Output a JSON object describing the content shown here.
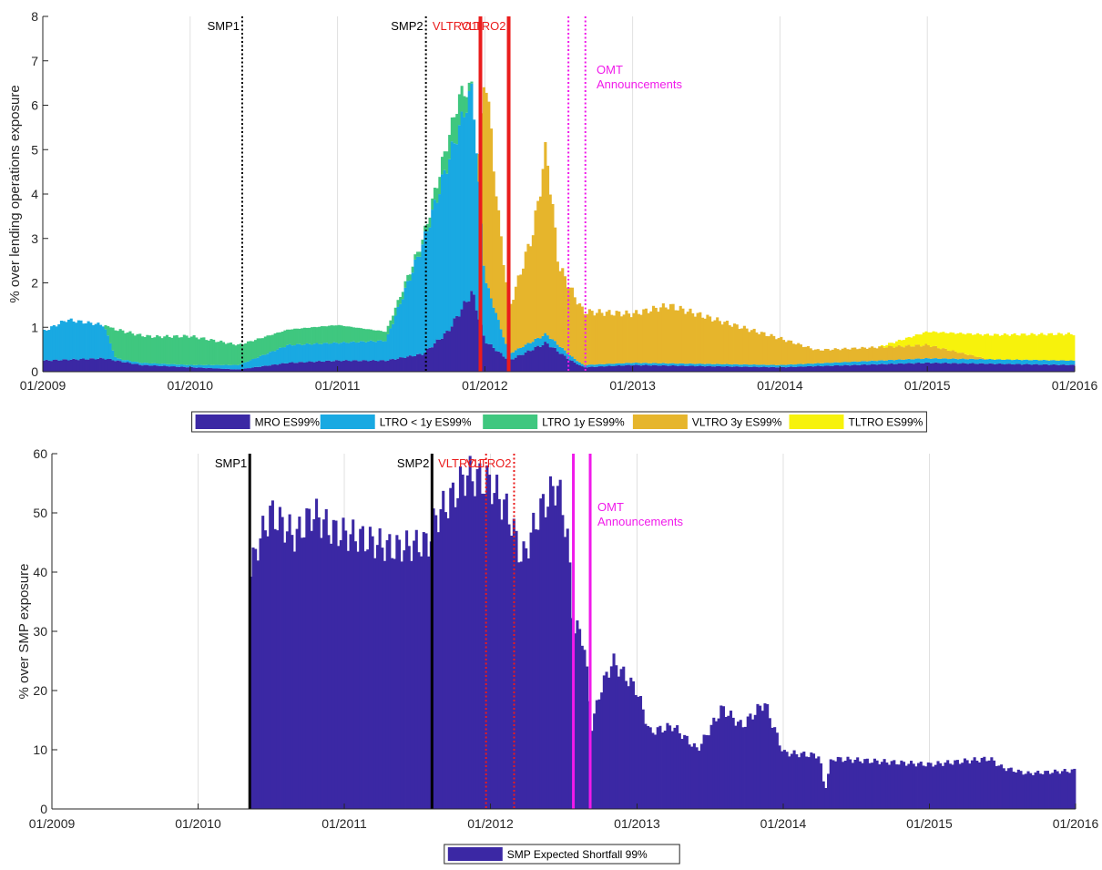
{
  "chart_data": [
    {
      "type": "area",
      "stacked": true,
      "x_axis": {
        "type": "date",
        "range": [
          "2009-01-01",
          "2016-01-01"
        ],
        "tick_values": [
          "2009-01-01",
          "2010-01-01",
          "2011-01-01",
          "2012-01-01",
          "2013-01-01",
          "2014-01-01",
          "2015-01-01",
          "2016-01-01"
        ],
        "tick_labels": [
          "01/2009",
          "01/2010",
          "01/2011",
          "01/2012",
          "01/2013",
          "01/2014",
          "01/2015",
          "01/2016"
        ]
      },
      "y_axis": {
        "label": "% over lending operations exposure",
        "range": [
          0,
          8
        ],
        "tick_values": [
          0,
          1,
          2,
          3,
          4,
          5,
          6,
          7,
          8
        ],
        "tick_labels": [
          "0",
          "1",
          "2",
          "3",
          "4",
          "5",
          "6",
          "7",
          "8"
        ]
      },
      "grid": "vertical",
      "legend_position": "bottom",
      "series": [
        {
          "name": "MRO ES99%",
          "color": "#3b28a4",
          "points": [
            [
              "2009-01-01",
              0.25
            ],
            [
              "2009-06-01",
              0.3
            ],
            [
              "2009-09-01",
              0.15
            ],
            [
              "2010-01-01",
              0.1
            ],
            [
              "2010-05-01",
              0.05
            ],
            [
              "2010-09-01",
              0.2
            ],
            [
              "2011-01-01",
              0.25
            ],
            [
              "2011-05-01",
              0.25
            ],
            [
              "2011-08-01",
              0.4
            ],
            [
              "2011-10-01",
              0.9
            ],
            [
              "2011-12-01",
              1.8
            ],
            [
              "2012-01-01",
              0.7
            ],
            [
              "2012-03-01",
              0.25
            ],
            [
              "2012-06-01",
              0.65
            ],
            [
              "2012-08-01",
              0.25
            ],
            [
              "2012-09-01",
              0.1
            ],
            [
              "2013-01-01",
              0.15
            ],
            [
              "2014-01-01",
              0.1
            ],
            [
              "2015-01-01",
              0.2
            ],
            [
              "2016-01-01",
              0.15
            ]
          ]
        },
        {
          "name": "LTRO < 1y ES99%",
          "color": "#19a9e2",
          "points": [
            [
              "2009-01-01",
              0.65
            ],
            [
              "2009-03-01",
              0.9
            ],
            [
              "2009-06-01",
              0.75
            ],
            [
              "2009-07-01",
              0.05
            ],
            [
              "2010-01-01",
              0.05
            ],
            [
              "2010-05-01",
              0.1
            ],
            [
              "2010-09-01",
              0.4
            ],
            [
              "2011-01-01",
              0.4
            ],
            [
              "2011-05-01",
              0.45
            ],
            [
              "2011-08-01",
              2.5
            ],
            [
              "2011-10-01",
              3.8
            ],
            [
              "2011-12-01",
              4.6
            ],
            [
              "2012-01-01",
              1.4
            ],
            [
              "2012-03-01",
              0.15
            ],
            [
              "2012-06-01",
              0.2
            ],
            [
              "2012-09-01",
              0.05
            ],
            [
              "2013-01-01",
              0.05
            ],
            [
              "2014-01-01",
              0.05
            ],
            [
              "2015-01-01",
              0.1
            ],
            [
              "2016-01-01",
              0.1
            ]
          ]
        },
        {
          "name": "LTRO 1y ES99%",
          "color": "#3fc77f",
          "points": [
            [
              "2009-01-01",
              0.0
            ],
            [
              "2009-06-01",
              0.0
            ],
            [
              "2009-07-01",
              0.65
            ],
            [
              "2009-10-01",
              0.6
            ],
            [
              "2010-01-01",
              0.65
            ],
            [
              "2010-05-01",
              0.45
            ],
            [
              "2010-09-01",
              0.35
            ],
            [
              "2011-01-01",
              0.4
            ],
            [
              "2011-05-01",
              0.2
            ],
            [
              "2011-08-01",
              0.1
            ],
            [
              "2011-11-01",
              0.7
            ],
            [
              "2011-12-01",
              0.0
            ],
            [
              "2016-01-01",
              0.0
            ]
          ]
        },
        {
          "name": "VLTRO 3y ES99%",
          "color": "#e6b52c",
          "points": [
            [
              "2009-01-01",
              0.0
            ],
            [
              "2011-12-15",
              0.0
            ],
            [
              "2012-01-01",
              4.8
            ],
            [
              "2012-02-01",
              2.5
            ],
            [
              "2012-03-01",
              1.0
            ],
            [
              "2012-05-01",
              2.5
            ],
            [
              "2012-06-01",
              4.2
            ],
            [
              "2012-07-01",
              1.8
            ],
            [
              "2012-09-01",
              1.2
            ],
            [
              "2013-01-01",
              1.1
            ],
            [
              "2013-04-01",
              1.3
            ],
            [
              "2013-09-01",
              0.9
            ],
            [
              "2014-01-01",
              0.6
            ],
            [
              "2014-04-01",
              0.3
            ],
            [
              "2015-01-01",
              0.3
            ],
            [
              "2015-06-01",
              0.0
            ],
            [
              "2016-01-01",
              0.0
            ]
          ]
        },
        {
          "name": "TLTRO ES99%",
          "color": "#f7f20c",
          "points": [
            [
              "2009-01-01",
              0.0
            ],
            [
              "2014-09-01",
              0.0
            ],
            [
              "2015-01-01",
              0.3
            ],
            [
              "2015-06-01",
              0.55
            ],
            [
              "2016-01-01",
              0.6
            ]
          ]
        }
      ],
      "annotations": [
        {
          "label": "SMP1",
          "date": "2010-05-10",
          "color": "#000000",
          "style": "dotted"
        },
        {
          "label": "SMP2",
          "date": "2011-08-08",
          "color": "#000000",
          "style": "dotted"
        },
        {
          "label": "VLTRO1",
          "date": "2011-12-21",
          "color": "#ea1c1c",
          "style": "solid"
        },
        {
          "label": "VLTRO2",
          "date": "2012-02-29",
          "color": "#ea1c1c",
          "style": "solid"
        },
        {
          "label": "",
          "date": "2012-07-26",
          "color": "#f01aea",
          "style": "dotted"
        },
        {
          "label": "",
          "date": "2012-09-06",
          "color": "#f01aea",
          "style": "dotted"
        },
        {
          "label": "OMT\nAnnouncements",
          "color": "#f01aea"
        }
      ]
    },
    {
      "type": "area",
      "x_axis": {
        "type": "date",
        "range": [
          "2009-01-01",
          "2016-01-01"
        ],
        "tick_values": [
          "2009-01-01",
          "2010-01-01",
          "2011-01-01",
          "2012-01-01",
          "2013-01-01",
          "2014-01-01",
          "2015-01-01",
          "2016-01-01"
        ],
        "tick_labels": [
          "01/2009",
          "01/2010",
          "01/2011",
          "01/2012",
          "01/2013",
          "01/2014",
          "01/2015",
          "01/2016"
        ]
      },
      "y_axis": {
        "label": "% over SMP exposure",
        "range": [
          0,
          60
        ],
        "tick_values": [
          0,
          10,
          20,
          30,
          40,
          50,
          60
        ],
        "tick_labels": [
          "0",
          "10",
          "20",
          "30",
          "40",
          "50",
          "60"
        ]
      },
      "grid": "vertical",
      "legend_position": "bottom",
      "series": [
        {
          "name": "SMP Expected Shortfall 99%",
          "color": "#3b28a4",
          "points": [
            [
              "2010-05-10",
              40
            ],
            [
              "2010-06-01",
              45
            ],
            [
              "2010-07-01",
              50
            ],
            [
              "2010-09-01",
              46
            ],
            [
              "2010-10-15",
              50
            ],
            [
              "2010-12-01",
              47
            ],
            [
              "2011-02-01",
              46
            ],
            [
              "2011-05-01",
              44
            ],
            [
              "2011-08-01",
              45
            ],
            [
              "2011-08-15",
              49
            ],
            [
              "2011-10-01",
              53
            ],
            [
              "2011-11-01",
              56.5
            ],
            [
              "2012-01-01",
              55
            ],
            [
              "2012-02-15",
              50
            ],
            [
              "2012-03-20",
              42
            ],
            [
              "2012-05-01",
              50
            ],
            [
              "2012-06-15",
              55
            ],
            [
              "2012-07-10",
              47
            ],
            [
              "2012-07-26",
              31
            ],
            [
              "2012-08-20",
              29
            ],
            [
              "2012-09-10",
              14
            ],
            [
              "2012-10-01",
              20
            ],
            [
              "2012-11-01",
              25
            ],
            [
              "2013-01-01",
              20
            ],
            [
              "2013-02-01",
              13
            ],
            [
              "2013-04-01",
              14
            ],
            [
              "2013-06-01",
              10
            ],
            [
              "2013-08-01",
              17
            ],
            [
              "2013-09-20",
              14
            ],
            [
              "2013-11-15",
              18
            ],
            [
              "2014-01-01",
              9.5
            ],
            [
              "2014-04-01",
              9
            ],
            [
              "2014-04-15",
              3
            ],
            [
              "2014-05-01",
              8.5
            ],
            [
              "2014-09-01",
              8
            ],
            [
              "2015-01-01",
              7.5
            ],
            [
              "2015-06-01",
              8.5
            ],
            [
              "2015-07-01",
              7
            ],
            [
              "2015-09-01",
              6
            ],
            [
              "2016-01-01",
              6.5
            ]
          ]
        }
      ],
      "annotations": [
        {
          "label": "SMP1",
          "date": "2010-05-10",
          "color": "#000000",
          "style": "solid"
        },
        {
          "label": "SMP2",
          "date": "2011-08-08",
          "color": "#000000",
          "style": "solid"
        },
        {
          "label": "VLTRO1",
          "date": "2011-12-21",
          "color": "#ea1c1c",
          "style": "dotted"
        },
        {
          "label": "VLTRO2",
          "date": "2012-02-29",
          "color": "#ea1c1c",
          "style": "dotted"
        },
        {
          "label": "",
          "date": "2012-07-26",
          "color": "#f01aea",
          "style": "solid"
        },
        {
          "label": "",
          "date": "2012-09-06",
          "color": "#f01aea",
          "style": "solid"
        },
        {
          "label": "OMT\nAnnouncements",
          "color": "#f01aea"
        }
      ]
    }
  ]
}
